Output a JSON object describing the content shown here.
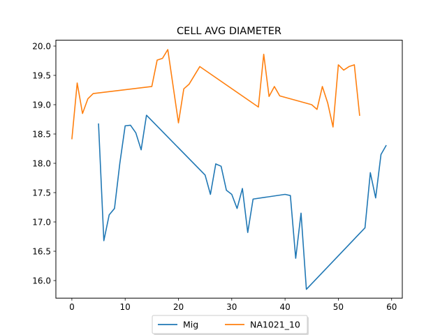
{
  "chart_data": {
    "type": "line",
    "title": "CELL AVG  DIAMETER",
    "xlabel": "",
    "ylabel": "",
    "xlim": [
      -3,
      62
    ],
    "ylim": [
      15.7,
      20.1
    ],
    "x_ticks": [
      0,
      10,
      20,
      30,
      40,
      50,
      60
    ],
    "y_ticks": [
      16.0,
      16.5,
      17.0,
      17.5,
      18.0,
      18.5,
      19.0,
      19.5,
      20.0
    ],
    "grid": false,
    "legend_position": "bottom-center",
    "series": [
      {
        "name": "Mig",
        "color": "#1f77b4",
        "x": [
          5,
          6,
          7,
          8,
          9,
          10,
          11,
          12,
          13,
          14,
          25,
          26,
          27,
          28,
          29,
          30,
          31,
          32,
          33,
          34,
          40,
          41,
          42,
          43,
          44,
          55,
          56,
          57,
          58,
          59
        ],
        "y": [
          18.68,
          16.68,
          17.12,
          17.23,
          18.0,
          18.64,
          18.65,
          18.52,
          18.23,
          18.82,
          17.8,
          17.47,
          17.99,
          17.95,
          17.54,
          17.47,
          17.23,
          17.57,
          16.82,
          17.39,
          17.47,
          17.45,
          16.38,
          17.15,
          15.85,
          16.9,
          17.84,
          17.41,
          18.15,
          18.31
        ]
      },
      {
        "name": "NA1021_10",
        "color": "#ff7f0e",
        "x": [
          0,
          1,
          2,
          3,
          4,
          15,
          16,
          17,
          18,
          20,
          21,
          22,
          24,
          35,
          36,
          37,
          38,
          39,
          45,
          46,
          47,
          48,
          49,
          50,
          51,
          52,
          53,
          54
        ],
        "y": [
          18.41,
          19.37,
          18.85,
          19.1,
          19.19,
          19.31,
          19.76,
          19.79,
          19.94,
          18.69,
          19.27,
          19.35,
          19.65,
          18.96,
          19.86,
          19.14,
          19.31,
          19.15,
          19.0,
          18.92,
          19.31,
          19.03,
          18.62,
          19.68,
          19.59,
          19.65,
          19.68,
          18.81
        ]
      }
    ]
  }
}
